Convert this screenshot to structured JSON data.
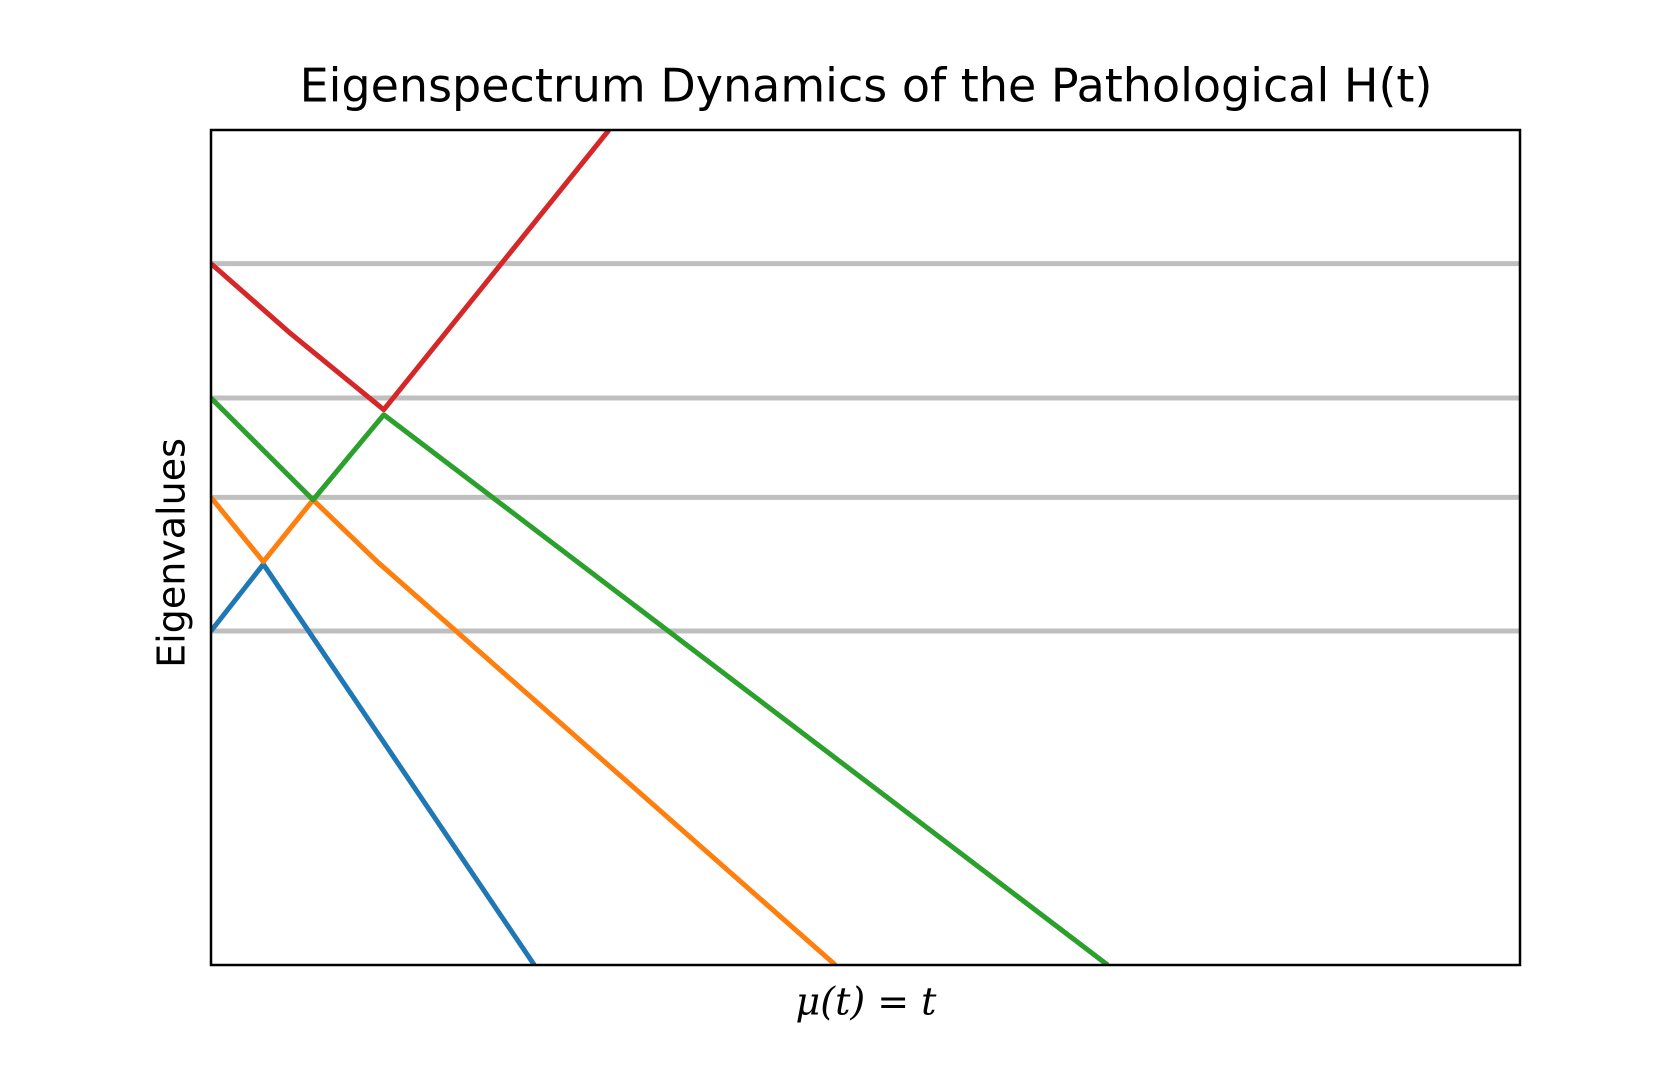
{
  "chart_data": {
    "type": "line",
    "title": "Eigenspectrum Dynamics of the Pathological H(t)",
    "x_label": "μ(t) = t",
    "y_label": "Eigenvalues",
    "xlim": [
      0,
      10
    ],
    "ylim": [
      0,
      10
    ],
    "reference_lines": {
      "color": "#bfbfbf",
      "values": [
        8.4,
        6.79,
        5.6,
        4.0
      ]
    },
    "series": [
      {
        "color": "#1f77b4",
        "x": [
          0,
          0.4,
          2.47
        ],
        "values": [
          4.0,
          4.8,
          0
        ]
      },
      {
        "color": "#ff7f0e",
        "x": [
          0,
          0.4,
          0.78,
          1.27,
          4.77
        ],
        "values": [
          5.6,
          4.83,
          5.57,
          4.83,
          0
        ]
      },
      {
        "color": "#2ca02c",
        "x": [
          0,
          0.78,
          1.32,
          6.85
        ],
        "values": [
          6.79,
          5.57,
          6.59,
          0
        ]
      },
      {
        "color": "#d62728",
        "x": [
          0,
          0.61,
          1.32,
          3.04
        ],
        "values": [
          8.4,
          7.56,
          6.65,
          10.0
        ]
      }
    ]
  }
}
